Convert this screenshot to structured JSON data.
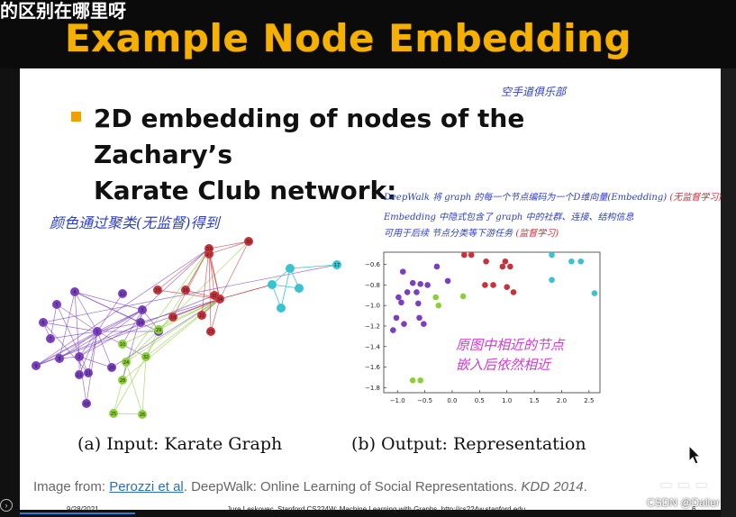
{
  "overlay_subtitle": "的区别在哪里呀",
  "slide": {
    "title": "Example Node Embedding",
    "heading_line1": "2D embedding of nodes of the Zachary’s",
    "heading_line2": "Karate Club network:",
    "annotations": {
      "karate_club_cn": "空手道俱乐部",
      "left_note": "颜色通过聚类(无监督)得到",
      "deepwalk_line1": "DeepWalk 将 graph 的每一个节点编码为一个D维向量(Embedding)",
      "deepwalk_line1_tag": "(无监督学习)",
      "deepwalk_line2": "Embedding 中隐式包含了 graph 中的社群、连接、结构信息",
      "deepwalk_line3": "可用于后续 节点分类等下游任务",
      "deepwalk_line3_tag": "(监督学习)",
      "plot_note_line1": "原图中相近的节点",
      "plot_note_line2": "嵌入后依然相近"
    },
    "caption_a": "(a) Input: Karate Graph",
    "caption_b": "(b) Output: Representation",
    "source_prefix": "Image from: ",
    "source_link": "Perozzi et al",
    "source_text": ". DeepWalk: Online Learning of Social Representations. ",
    "source_venue": "KDD 2014",
    "source_end": ".",
    "footer_date": "9/28/2021",
    "footer_course": "Jure Leskovec, Stanford CS224W: Machine Learning with Graphs, http://cs224w.stanford.edu",
    "footer_page": "6"
  },
  "watermark": "CSDN @Dalier",
  "colors": {
    "title": "#f6b000",
    "purple": "#7a3fc0",
    "red": "#c8323a",
    "green": "#8ccf3a",
    "cyan": "#37c3cf",
    "annot_blue": "#2b3ec8",
    "annot_red": "#d02a3a",
    "annot_magenta": "#d03ad0"
  },
  "chart_data": [
    {
      "type": "graph",
      "title": "(a) Input: Karate Graph",
      "nodes": [
        {
          "id": 1,
          "group": "purple"
        },
        {
          "id": 2,
          "group": "purple"
        },
        {
          "id": 3,
          "group": "purple"
        },
        {
          "id": 4,
          "group": "purple"
        },
        {
          "id": 5,
          "group": "purple"
        },
        {
          "id": 6,
          "group": "purple"
        },
        {
          "id": 7,
          "group": "purple"
        },
        {
          "id": 8,
          "group": "purple"
        },
        {
          "id": 9,
          "group": "purple"
        },
        {
          "id": 11,
          "group": "purple"
        },
        {
          "id": 12,
          "group": "purple"
        },
        {
          "id": 13,
          "group": "purple"
        },
        {
          "id": 14,
          "group": "purple"
        },
        {
          "id": 18,
          "group": "purple"
        },
        {
          "id": 20,
          "group": "purple"
        },
        {
          "id": 22,
          "group": "purple"
        },
        {
          "id": 10,
          "group": "green"
        },
        {
          "id": 24,
          "group": "green"
        },
        {
          "id": 25,
          "group": "green"
        },
        {
          "id": 26,
          "group": "green"
        },
        {
          "id": 28,
          "group": "green"
        },
        {
          "id": 29,
          "group": "green"
        },
        {
          "id": 32,
          "group": "green"
        },
        {
          "id": 15,
          "group": "red"
        },
        {
          "id": 16,
          "group": "red"
        },
        {
          "id": 19,
          "group": "red"
        },
        {
          "id": 21,
          "group": "red"
        },
        {
          "id": 23,
          "group": "red"
        },
        {
          "id": 27,
          "group": "red"
        },
        {
          "id": 30,
          "group": "red"
        },
        {
          "id": 31,
          "group": "red"
        },
        {
          "id": 33,
          "group": "red"
        },
        {
          "id": 34,
          "group": "red"
        },
        {
          "id": 17,
          "group": "cyan"
        }
      ]
    },
    {
      "type": "scatter",
      "title": "(b) Output: Representation",
      "xlim": [
        -1.25,
        2.7
      ],
      "ylim": [
        -1.85,
        -0.48
      ],
      "xticks": [
        -1.0,
        -0.5,
        0.0,
        0.5,
        1.0,
        1.5,
        2.0,
        2.5
      ],
      "yticks": [
        -0.6,
        -0.8,
        -1.0,
        -1.2,
        -1.4,
        -1.6,
        -1.8
      ],
      "points": [
        {
          "x": 0.22,
          "y": -0.47,
          "group": "red"
        },
        {
          "x": 0.35,
          "y": -0.47,
          "group": "red"
        },
        {
          "x": 0.62,
          "y": -0.57,
          "group": "red"
        },
        {
          "x": 0.97,
          "y": -0.57,
          "group": "red"
        },
        {
          "x": 0.92,
          "y": -0.62,
          "group": "red"
        },
        {
          "x": 1.06,
          "y": -0.62,
          "group": "red"
        },
        {
          "x": 0.6,
          "y": -0.8,
          "group": "red"
        },
        {
          "x": 0.75,
          "y": -0.8,
          "group": "red"
        },
        {
          "x": 1.12,
          "y": -0.87,
          "group": "red"
        },
        {
          "x": 1.0,
          "y": -0.82,
          "group": "red"
        },
        {
          "x": -0.28,
          "y": -0.62,
          "group": "purple"
        },
        {
          "x": -0.9,
          "y": -0.67,
          "group": "purple"
        },
        {
          "x": -0.72,
          "y": -0.78,
          "group": "purple"
        },
        {
          "x": -0.58,
          "y": -0.79,
          "group": "purple"
        },
        {
          "x": -0.45,
          "y": -0.8,
          "group": "purple"
        },
        {
          "x": -0.08,
          "y": -0.76,
          "group": "purple"
        },
        {
          "x": -0.82,
          "y": -0.87,
          "group": "purple"
        },
        {
          "x": -0.65,
          "y": -0.87,
          "group": "purple"
        },
        {
          "x": -0.98,
          "y": -0.92,
          "group": "purple"
        },
        {
          "x": -0.93,
          "y": -0.97,
          "group": "purple"
        },
        {
          "x": -1.02,
          "y": -1.12,
          "group": "purple"
        },
        {
          "x": -0.6,
          "y": -1.12,
          "group": "purple"
        },
        {
          "x": -0.52,
          "y": -1.18,
          "group": "purple"
        },
        {
          "x": -0.88,
          "y": -1.18,
          "group": "purple"
        },
        {
          "x": -1.08,
          "y": -1.24,
          "group": "purple"
        },
        {
          "x": -0.62,
          "y": -0.98,
          "group": "purple"
        },
        {
          "x": -0.3,
          "y": -0.92,
          "group": "green"
        },
        {
          "x": 0.2,
          "y": -0.91,
          "group": "green"
        },
        {
          "x": -0.25,
          "y": -1.0,
          "group": "green"
        },
        {
          "x": -0.72,
          "y": -1.73,
          "group": "green"
        },
        {
          "x": -0.58,
          "y": -1.73,
          "group": "green"
        },
        {
          "x": 1.82,
          "y": -0.45,
          "group": "cyan"
        },
        {
          "x": 2.18,
          "y": -0.57,
          "group": "cyan"
        },
        {
          "x": 2.35,
          "y": -0.57,
          "group": "cyan"
        },
        {
          "x": 1.82,
          "y": -0.75,
          "group": "cyan"
        },
        {
          "x": 2.6,
          "y": -0.88,
          "group": "cyan"
        }
      ]
    }
  ]
}
